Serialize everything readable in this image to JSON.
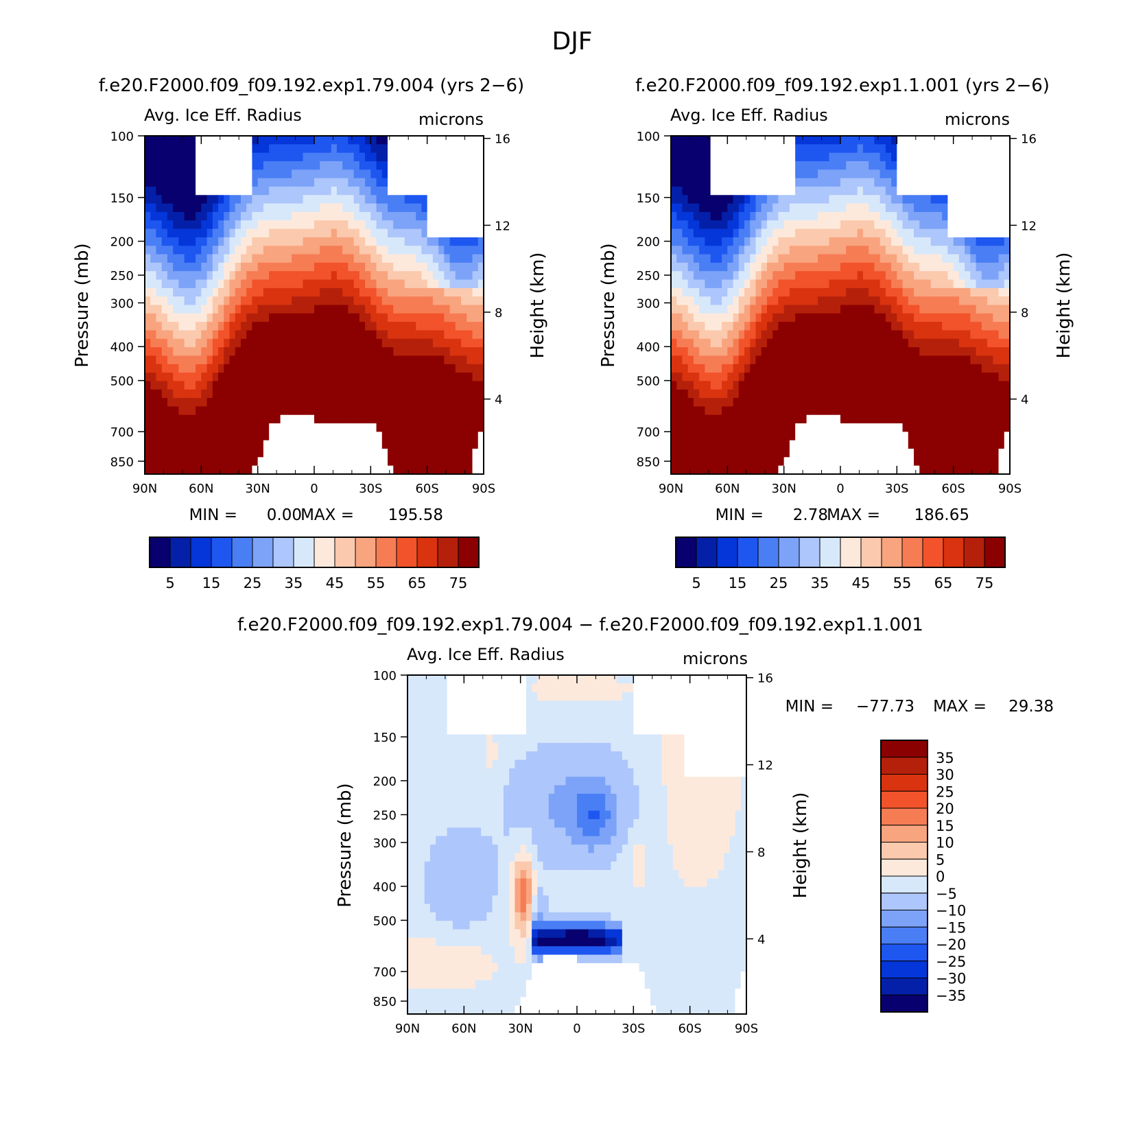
{
  "page": {
    "title": "DJF",
    "diff_title": "f.e20.F2000.f09_f09.192.exp1.79.004 − f.e20.F2000.f09_f09.192.exp1.1.001"
  },
  "colors": {
    "levels_abs": [
      "#08006e",
      "#0420a8",
      "#0536d9",
      "#1e56f0",
      "#4a7ef5",
      "#7da3f8",
      "#adc6fb",
      "#d8e8fb",
      "#fde9db",
      "#fbc9ad",
      "#f8a47f",
      "#f67c54",
      "#f2532a",
      "#d9330f",
      "#b5200b",
      "#8b0000"
    ],
    "levels_diff": [
      "#08006e",
      "#0420a8",
      "#0536d9",
      "#1e56f0",
      "#4a7ef5",
      "#7da3f8",
      "#adc6fb",
      "#d8e8fb",
      "#fde9db",
      "#fbc9ad",
      "#f8a47f",
      "#f67c54",
      "#f2532a",
      "#d9330f",
      "#b5200b",
      "#8b0000"
    ],
    "missing": "#ffffff"
  },
  "chart_data": [
    {
      "type": "heatmap",
      "id": "left",
      "title": "f.e20.F2000.f09_f09.192.exp1.79.004 (yrs 2−6)",
      "subtitle_left": "Avg. Ice Eff. Radius",
      "subtitle_right": "microns",
      "ylabel": "Pressure (mb)",
      "ylabel_right": "Height (km)",
      "xticks": [
        "90N",
        "60N",
        "30N",
        "0",
        "30S",
        "60S",
        "90S"
      ],
      "yticks": [
        "100",
        "150",
        "200",
        "250",
        "300",
        "400",
        "500",
        "700",
        "850"
      ],
      "yticks_right": [
        "16",
        "12",
        "8",
        "4"
      ],
      "min_label": "MIN =",
      "min_value": "0.00",
      "max_label": "MAX =",
      "max_value": "195.58",
      "colorbar_labels": [
        "5",
        "15",
        "25",
        "35",
        "45",
        "55",
        "65",
        "75"
      ],
      "contour_levels": [
        0,
        5,
        10,
        15,
        20,
        25,
        30,
        35,
        40,
        45,
        50,
        55,
        60,
        65,
        70,
        75
      ]
    },
    {
      "type": "heatmap",
      "id": "right",
      "title": "f.e20.F2000.f09_f09.192.exp1.1.001 (yrs 2−6)",
      "subtitle_left": "Avg. Ice Eff. Radius",
      "subtitle_right": "microns",
      "ylabel": "Pressure (mb)",
      "ylabel_right": "Height (km)",
      "xticks": [
        "90N",
        "60N",
        "30N",
        "0",
        "30S",
        "60S",
        "90S"
      ],
      "yticks": [
        "100",
        "150",
        "200",
        "250",
        "300",
        "400",
        "500",
        "700",
        "850"
      ],
      "yticks_right": [
        "16",
        "12",
        "8",
        "4"
      ],
      "min_label": "MIN =",
      "min_value": "2.78",
      "max_label": "MAX =",
      "max_value": "186.65",
      "colorbar_labels": [
        "5",
        "15",
        "25",
        "35",
        "45",
        "55",
        "65",
        "75"
      ],
      "contour_levels": [
        0,
        5,
        10,
        15,
        20,
        25,
        30,
        35,
        40,
        45,
        50,
        55,
        60,
        65,
        70,
        75
      ]
    },
    {
      "type": "heatmap",
      "id": "diff",
      "title": "f.e20.F2000.f09_f09.192.exp1.79.004 − f.e20.F2000.f09_f09.192.exp1.1.001",
      "subtitle_left": "Avg. Ice Eff. Radius",
      "subtitle_right": "microns",
      "ylabel": "Pressure (mb)",
      "ylabel_right": "Height (km)",
      "xticks": [
        "90N",
        "60N",
        "30N",
        "0",
        "30S",
        "60S",
        "90S"
      ],
      "yticks": [
        "100",
        "150",
        "200",
        "250",
        "300",
        "400",
        "500",
        "700",
        "850"
      ],
      "yticks_right": [
        "16",
        "12",
        "8",
        "4"
      ],
      "min_label": "MIN =",
      "min_value": "−77.73",
      "max_label": "MAX =",
      "max_value": "29.38",
      "colorbar_labels": [
        "35",
        "30",
        "25",
        "20",
        "15",
        "10",
        "5",
        "0",
        "−5",
        "−10",
        "−15",
        "−20",
        "−25",
        "−30",
        "−35"
      ],
      "contour_levels": [
        -35,
        -30,
        -25,
        -20,
        -15,
        -10,
        -5,
        0,
        5,
        10,
        15,
        20,
        25,
        30,
        35
      ]
    }
  ]
}
